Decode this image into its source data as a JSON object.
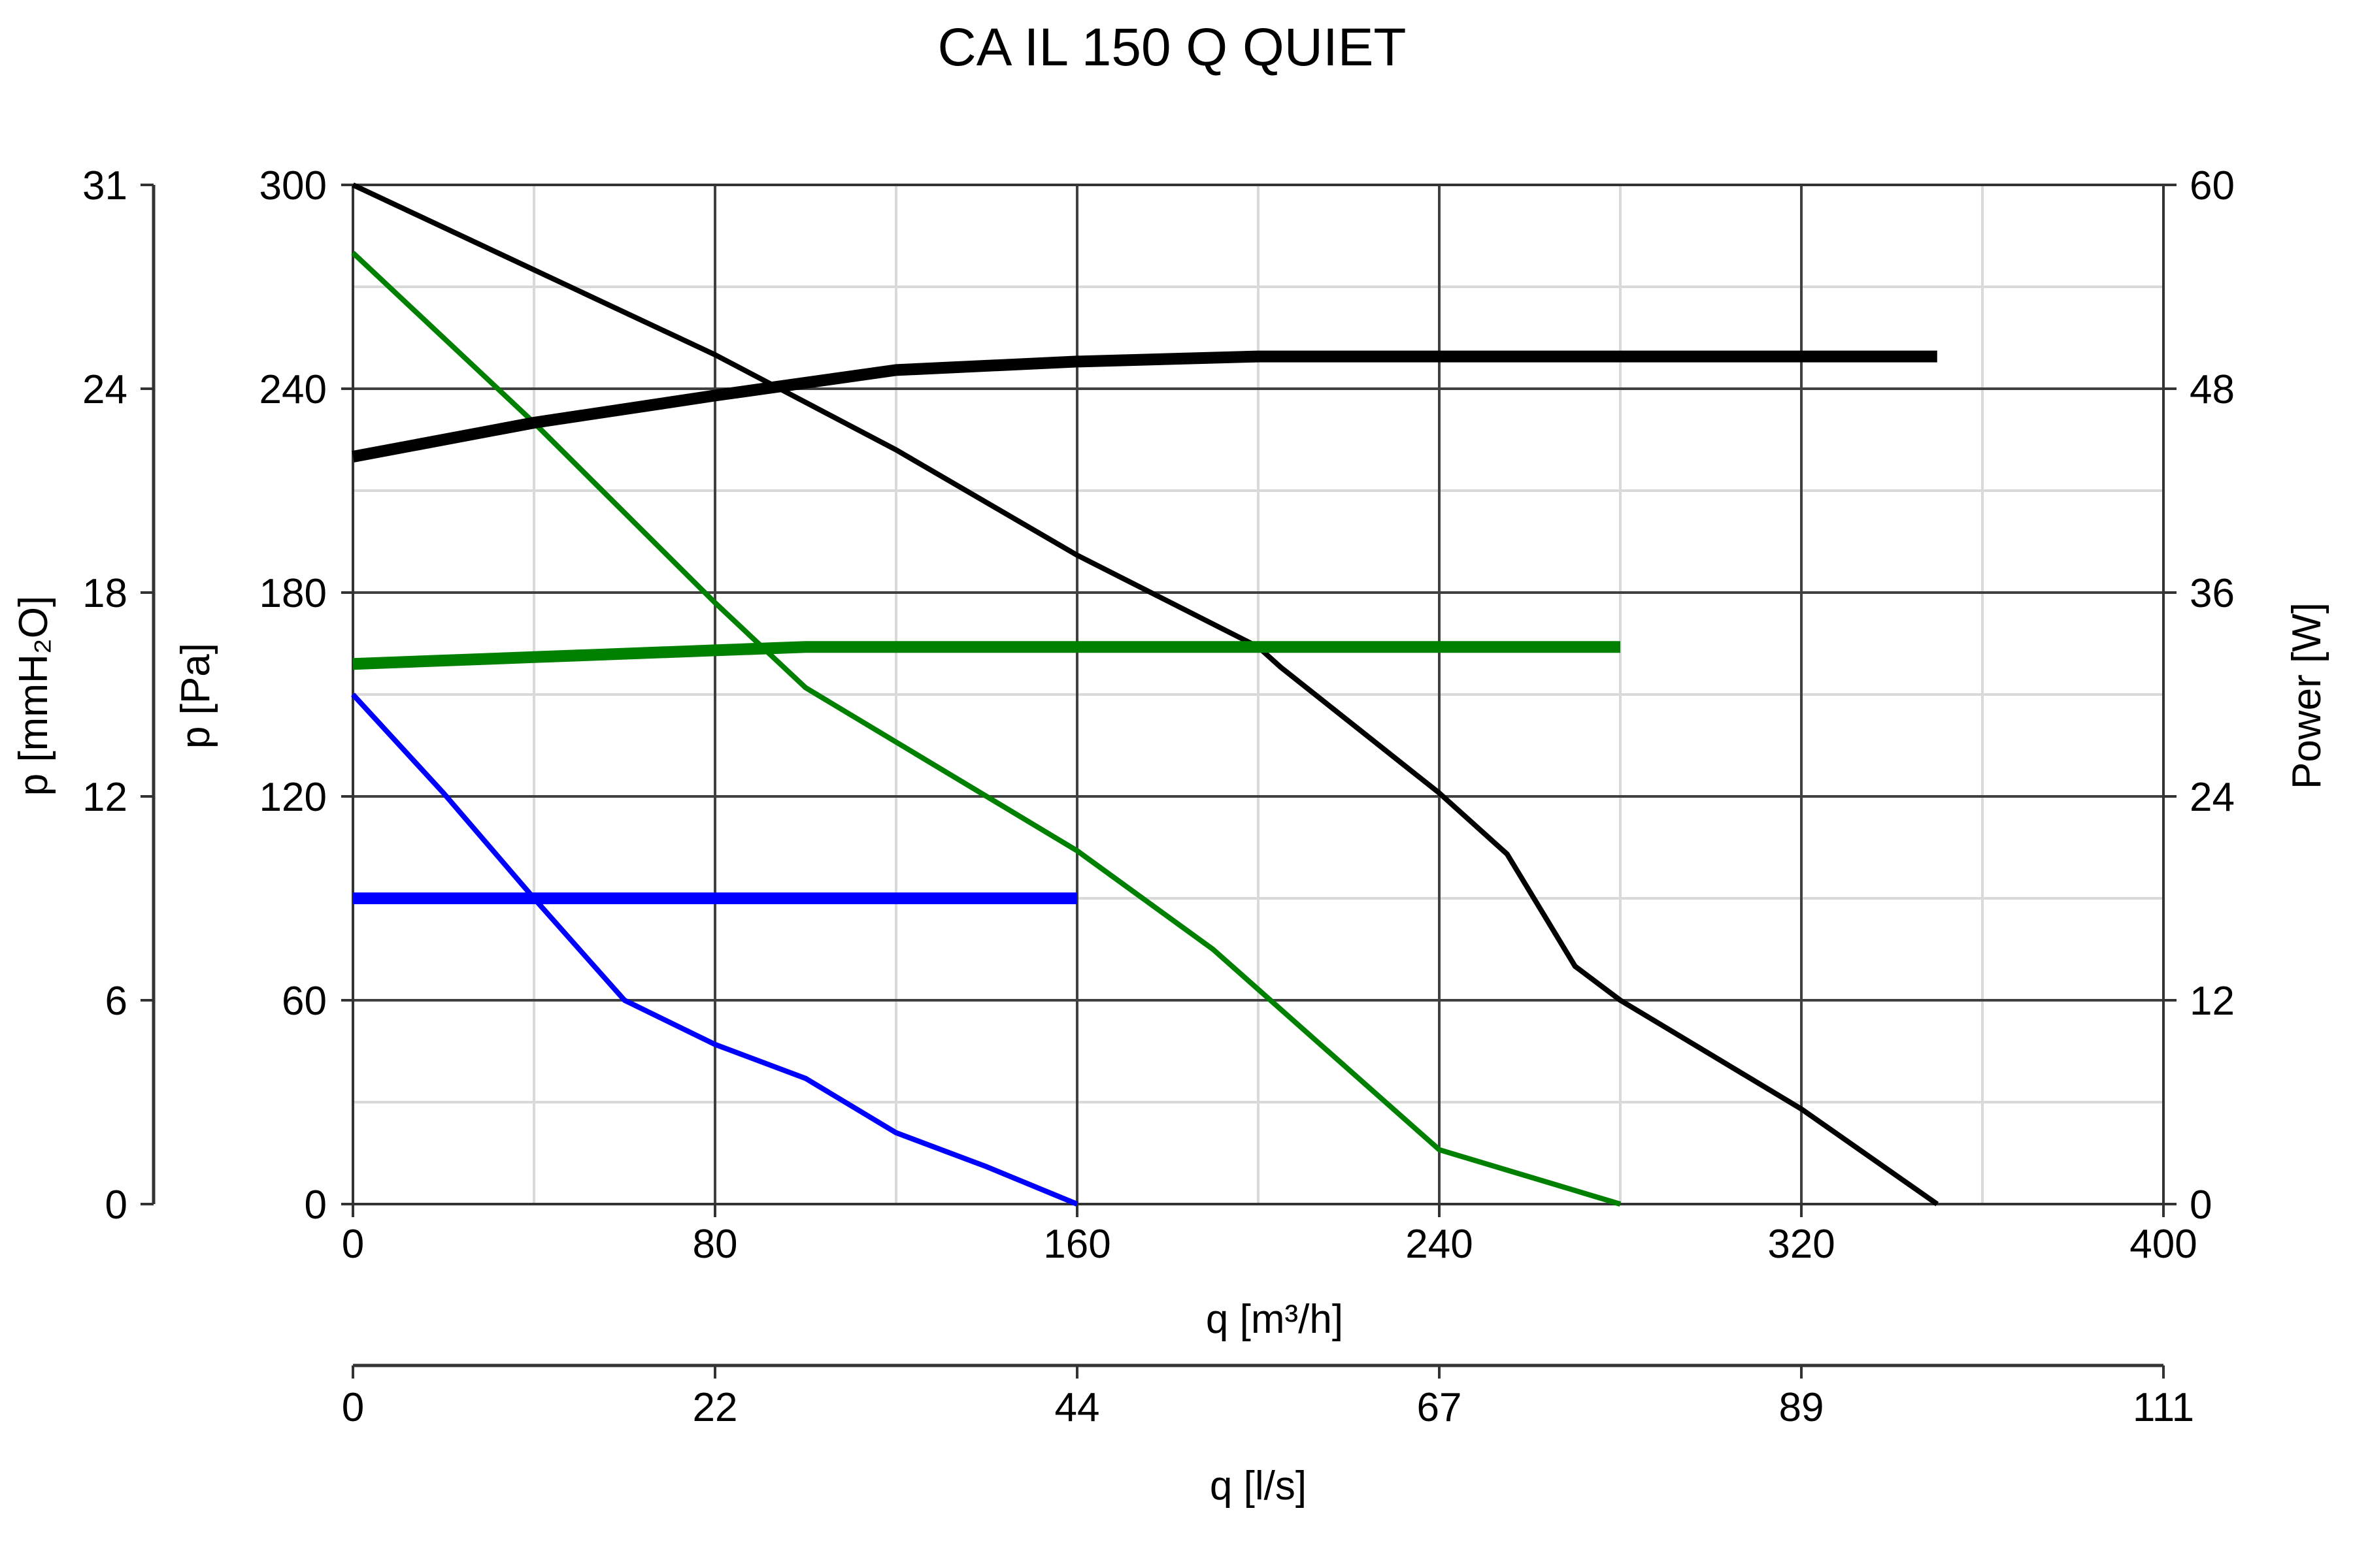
{
  "chart_data": {
    "type": "line",
    "title": "CA IL 150 Q QUIET",
    "x_axis": {
      "label": "q [m³/h]",
      "range": [
        0,
        400
      ],
      "ticks": [
        0,
        80,
        160,
        240,
        320,
        400
      ],
      "tick_labels": [
        "0",
        "80",
        "160",
        "240",
        "320",
        "400"
      ]
    },
    "x2_axis": {
      "label": "q [l/s]",
      "tick_labels": [
        "0",
        "22",
        "44",
        "67",
        "89",
        "111"
      ]
    },
    "y_axis": {
      "label": "p [Pa]",
      "range": [
        0,
        300
      ],
      "ticks": [
        0,
        60,
        120,
        180,
        240,
        300
      ],
      "tick_labels": [
        "0",
        "60",
        "120",
        "180",
        "240",
        "300"
      ]
    },
    "y_axis_far_left": {
      "label": "p [mmH₂O]",
      "tick_labels": [
        "0",
        "6",
        "12",
        "18",
        "24",
        "31"
      ]
    },
    "y_axis_right": {
      "label": "Power [W]",
      "range": [
        0,
        60
      ],
      "ticks": [
        0,
        12,
        24,
        36,
        48,
        60
      ],
      "tick_labels": [
        "0",
        "12",
        "24",
        "36",
        "48",
        "60"
      ]
    },
    "grid": true,
    "series": [
      {
        "kind": "pressure",
        "axis": "p",
        "color": "#000000",
        "points": [
          [
            0,
            300
          ],
          [
            40,
            275
          ],
          [
            80,
            250
          ],
          [
            120,
            222
          ],
          [
            160,
            191
          ],
          [
            200,
            164
          ],
          [
            205,
            158
          ],
          [
            240,
            121
          ],
          [
            255,
            103
          ],
          [
            270,
            70
          ],
          [
            280,
            60
          ],
          [
            300,
            44
          ],
          [
            320,
            28
          ],
          [
            350,
            0
          ]
        ]
      },
      {
        "kind": "pressure",
        "axis": "p",
        "color": "#008000",
        "points": [
          [
            0,
            280
          ],
          [
            40,
            230
          ],
          [
            80,
            177
          ],
          [
            100,
            152
          ],
          [
            160,
            104
          ],
          [
            190,
            75
          ],
          [
            240,
            16
          ],
          [
            280,
            0
          ]
        ]
      },
      {
        "kind": "pressure",
        "axis": "p",
        "color": "#0000ff",
        "points": [
          [
            0,
            150
          ],
          [
            20,
            121
          ],
          [
            40,
            90
          ],
          [
            60,
            60
          ],
          [
            80,
            47
          ],
          [
            100,
            37
          ],
          [
            120,
            21
          ],
          [
            140,
            11
          ],
          [
            160,
            0
          ]
        ]
      },
      {
        "kind": "power",
        "axis": "power",
        "color": "#000000",
        "points": [
          [
            0,
            44
          ],
          [
            40,
            46
          ],
          [
            80,
            47.6
          ],
          [
            120,
            49.1
          ],
          [
            160,
            49.6
          ],
          [
            200,
            49.9
          ],
          [
            350,
            49.9
          ]
        ]
      },
      {
        "kind": "power",
        "axis": "power",
        "color": "#008000",
        "points": [
          [
            0,
            31.8
          ],
          [
            40,
            32.2
          ],
          [
            80,
            32.6
          ],
          [
            100,
            32.8
          ],
          [
            280,
            32.8
          ]
        ]
      },
      {
        "kind": "power",
        "axis": "power",
        "color": "#0000ff",
        "points": [
          [
            0,
            18
          ],
          [
            160,
            18
          ]
        ]
      }
    ]
  }
}
